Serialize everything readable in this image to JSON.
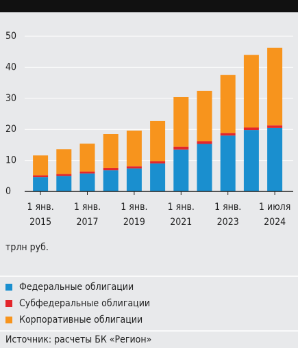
{
  "chart_data": {
    "type": "stacked_bar",
    "unit_label": "трлн руб.",
    "source": "Источник: расчеты БК «Регион»",
    "categories": [
      "1 янв. 2015",
      null,
      "1 янв. 2017",
      null,
      "1 янв. 2019",
      null,
      "1 янв. 2021",
      null,
      "1 янв. 2023",
      null,
      "1 июля 2024"
    ],
    "series": [
      {
        "name": "Федеральные облигации",
        "color": "#1a8fcf",
        "values": [
          4.6,
          5.0,
          5.8,
          6.8,
          7.4,
          9.0,
          13.5,
          15.3,
          18.0,
          19.8,
          20.5
        ]
      },
      {
        "name": "Субфедеральные облигации",
        "color": "#e3262b",
        "values": [
          0.6,
          0.6,
          0.6,
          0.7,
          0.7,
          0.7,
          0.9,
          0.9,
          0.8,
          0.8,
          0.8
        ]
      },
      {
        "name": "Корпоративные облигации",
        "color": "#f7941d",
        "values": [
          6.4,
          8.0,
          9.0,
          11.0,
          11.5,
          13.0,
          16.0,
          16.2,
          18.7,
          23.4,
          25.0
        ]
      }
    ],
    "ylim": [
      0,
      50
    ],
    "yticks": [
      0,
      10,
      20,
      30,
      40,
      50
    ],
    "grid": true
  }
}
